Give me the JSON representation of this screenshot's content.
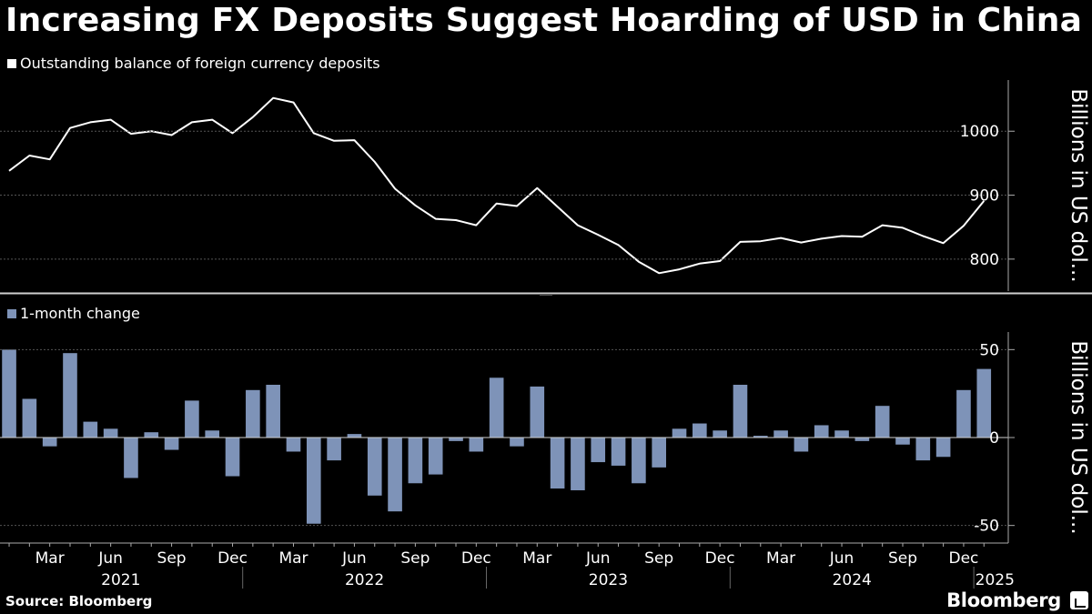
{
  "chart_data": {
    "title": "Increasing FX Deposits Suggest Hoarding of USD in China",
    "source": "Source: Bloomberg",
    "brand": "Bloomberg",
    "months": [
      "2021-01",
      "2021-02",
      "2021-03",
      "2021-04",
      "2021-05",
      "2021-06",
      "2021-07",
      "2021-08",
      "2021-09",
      "2021-10",
      "2021-11",
      "2021-12",
      "2022-01",
      "2022-02",
      "2022-03",
      "2022-04",
      "2022-05",
      "2022-06",
      "2022-07",
      "2022-08",
      "2022-09",
      "2022-10",
      "2022-11",
      "2022-12",
      "2023-01",
      "2023-02",
      "2023-03",
      "2023-04",
      "2023-05",
      "2023-06",
      "2023-07",
      "2023-08",
      "2023-09",
      "2023-10",
      "2023-11",
      "2023-12",
      "2024-01",
      "2024-02",
      "2024-03",
      "2024-04",
      "2024-05",
      "2024-06",
      "2024-07",
      "2024-08",
      "2024-09",
      "2024-10",
      "2024-11",
      "2024-12",
      "2025-01"
    ],
    "x_ticks": [
      "Mar",
      "Jun",
      "Sep",
      "Dec",
      "Mar",
      "Jun",
      "Sep",
      "Dec",
      "Mar",
      "Jun",
      "Sep",
      "Dec",
      "Mar",
      "Jun",
      "Sep",
      "Dec"
    ],
    "years": [
      "2021",
      "2022",
      "2023",
      "2024",
      "2025"
    ],
    "panels": [
      {
        "type": "line",
        "legend": "Outstanding balance of foreign currency deposits",
        "ylabel": "Billions in US dol...",
        "ylim": [
          750,
          1080
        ],
        "yticks": [
          800,
          900,
          1000
        ],
        "ytick_labels": [
          "800",
          "900",
          "1000"
        ],
        "color": "#ffffff",
        "values": [
          938,
          962,
          956,
          1005,
          1014,
          1018,
          996,
          1000,
          994,
          1014,
          1018,
          997,
          1022,
          1052,
          1045,
          997,
          985,
          986,
          952,
          910,
          884,
          863,
          861,
          853,
          887,
          883,
          911,
          882,
          853,
          838,
          822,
          796,
          778,
          784,
          793,
          797,
          827,
          828,
          833,
          826,
          832,
          836,
          835,
          853,
          849,
          836,
          825,
          852,
          891
        ]
      },
      {
        "type": "bar",
        "legend": "1-month change",
        "ylabel": "Billions in US dol...",
        "ylim": [
          -60,
          60
        ],
        "yticks": [
          -50,
          0,
          50
        ],
        "ytick_labels": [
          "-50",
          "0",
          "50"
        ],
        "color": "#7e93b8",
        "values": [
          50,
          22,
          -5,
          48,
          9,
          5,
          -23,
          3,
          -7,
          21,
          4,
          -22,
          27,
          30,
          -8,
          -49,
          -13,
          2,
          -33,
          -42,
          -26,
          -21,
          -2,
          -8,
          34,
          -5,
          29,
          -29,
          -30,
          -14,
          -16,
          -26,
          -17,
          5,
          8,
          4,
          30,
          1,
          4,
          -8,
          7,
          4,
          -2,
          18,
          -4,
          -13,
          -11,
          27,
          39
        ]
      }
    ]
  }
}
